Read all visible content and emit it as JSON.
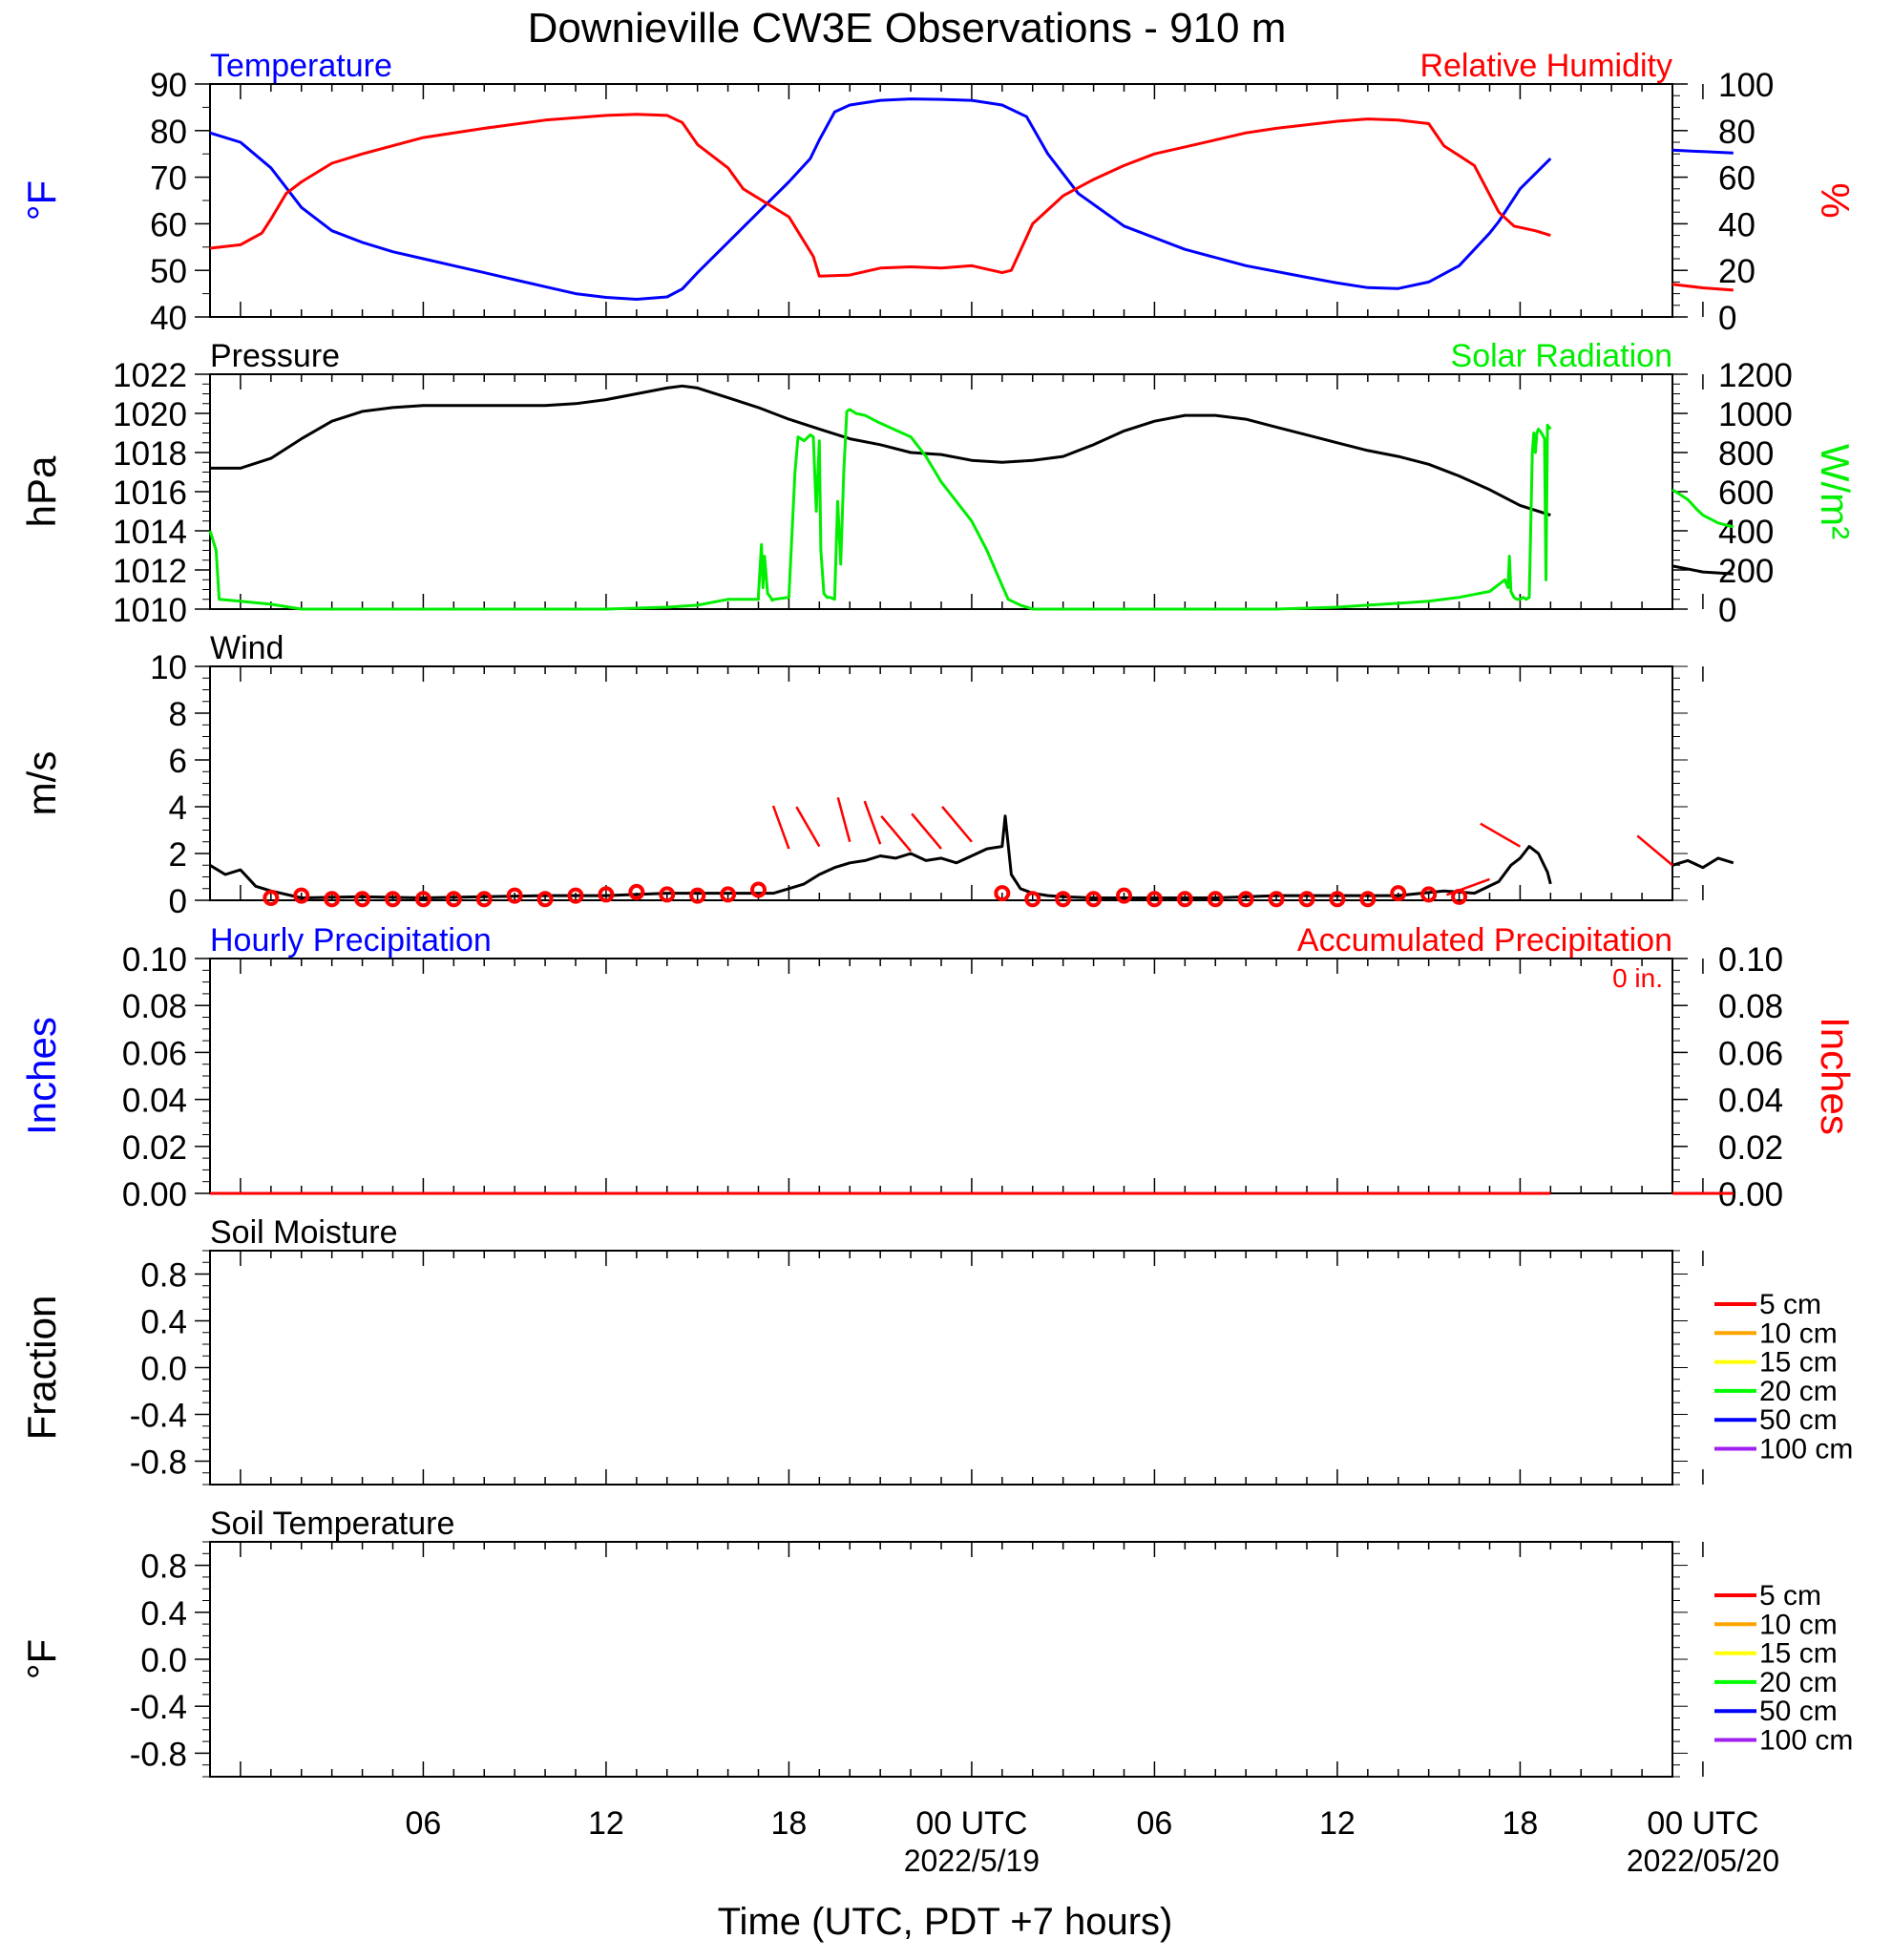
{
  "title": "Downieville CW3E Observations - 910 m",
  "xaxis": {
    "label": "Time (UTC, PDT +7 hours)",
    "range_hours": [
      -1,
      47
    ],
    "ticks": [
      {
        "h": 6,
        "label": "06",
        "sub": ""
      },
      {
        "h": 12,
        "label": "12",
        "sub": ""
      },
      {
        "h": 18,
        "label": "18",
        "sub": ""
      },
      {
        "h": 24,
        "label": "00 UTC",
        "sub": "2022/5/19"
      },
      {
        "h": 30,
        "label": "06",
        "sub": ""
      },
      {
        "h": 36,
        "label": "12",
        "sub": ""
      },
      {
        "h": 42,
        "label": "18",
        "sub": ""
      },
      {
        "h": 48,
        "label": "00 UTC",
        "sub": "2022/05/20"
      }
    ]
  },
  "colors": {
    "temperature": "#0000ff",
    "humidity": "#ff0000",
    "pressure": "#000000",
    "solar": "#00ee00",
    "wind": "#000000",
    "barb": "#ff0000",
    "hourly_precip": "#0000ff",
    "accum_precip": "#ff0000"
  },
  "legend_layers": [
    {
      "name": "5 cm",
      "color": "#ff0000"
    },
    {
      "name": "10 cm",
      "color": "#ffa500"
    },
    {
      "name": "15 cm",
      "color": "#ffff00"
    },
    {
      "name": "20 cm",
      "color": "#00ff00"
    },
    {
      "name": "50 cm",
      "color": "#0000ff"
    },
    {
      "name": "100 cm",
      "color": "#a020f0"
    }
  ],
  "panels": {
    "temp_rh": {
      "left_title": "Temperature",
      "right_title": "Relative Humidity",
      "left_unit": "°F",
      "right_unit": "%",
      "left_ticks": [
        "40",
        "50",
        "60",
        "70",
        "80",
        "90"
      ],
      "right_ticks": [
        "0",
        "20",
        "40",
        "60",
        "80",
        "100"
      ]
    },
    "pressure_solar": {
      "left_title": "Pressure",
      "right_title": "Solar Radiation",
      "left_unit": "hPa",
      "right_unit": "W/m²",
      "left_ticks": [
        "1010",
        "1012",
        "1014",
        "1016",
        "1018",
        "1020",
        "1022"
      ],
      "right_ticks": [
        "0",
        "200",
        "400",
        "600",
        "800",
        "1000",
        "1200"
      ]
    },
    "wind": {
      "left_title": "Wind",
      "left_unit": "m/s",
      "left_ticks": [
        "0",
        "2",
        "4",
        "6",
        "8",
        "10"
      ]
    },
    "precip": {
      "left_title": "Hourly Precipitation",
      "right_title": "Accumulated Precipitation",
      "total": "0 in.",
      "left_unit": "Inches",
      "right_unit": "Inches",
      "left_ticks": [
        "0.00",
        "0.02",
        "0.04",
        "0.06",
        "0.08",
        "0.10"
      ],
      "right_ticks": [
        "0.00",
        "0.02",
        "0.04",
        "0.06",
        "0.08",
        "0.10"
      ]
    },
    "soil_moisture": {
      "left_title": "Soil Moisture",
      "left_unit": "Fraction",
      "left_ticks": [
        "-0.8",
        "-0.4",
        "0.0",
        "0.4",
        "0.8"
      ]
    },
    "soil_temp": {
      "left_title": "Soil Temperature",
      "left_unit": "°F",
      "left_ticks": [
        "-0.8",
        "-0.4",
        "0.0",
        "0.4",
        "0.8"
      ]
    }
  },
  "chart_data": [
    {
      "type": "line",
      "title": "Temperature / Relative Humidity",
      "x_units": "hours since 2022-05-18 00 UTC",
      "ylim_left": [
        40,
        90
      ],
      "ylim_right": [
        0,
        100
      ],
      "series": [
        {
          "name": "Temperature",
          "axis": "left",
          "unit": "°F",
          "x": [
            -1,
            0,
            1,
            2,
            3,
            4,
            5,
            6,
            7,
            8,
            9,
            10,
            11,
            12,
            13,
            14,
            14.5,
            15,
            16,
            17,
            18,
            18.7,
            19,
            19.5,
            20,
            21,
            22,
            23,
            24,
            25,
            25.8,
            26.5,
            27.5,
            29,
            31,
            33,
            35,
            36,
            37,
            38,
            39,
            40,
            41,
            41.3,
            42,
            43
          ],
          "y": [
            79.5,
            77.5,
            72,
            63.5,
            58.5,
            56,
            54,
            52.5,
            51,
            49.5,
            48,
            46.5,
            45,
            44.2,
            43.8,
            44.3,
            46,
            49.5,
            56,
            62.5,
            69,
            74,
            78,
            84,
            85.5,
            86.5,
            86.8,
            86.7,
            86.5,
            85.5,
            83,
            75,
            66.5,
            59.5,
            54.5,
            51,
            48.5,
            47.3,
            46.3,
            46.1,
            47.5,
            51,
            58,
            60.5,
            67.5,
            74
          ]
        },
        {
          "name": "Temperature",
          "axis": "left",
          "unit": "°F",
          "x": [
            47,
            48,
            48,
            49
          ],
          "y": [
            75.8,
            75.5,
            75.5,
            75.2
          ]
        },
        {
          "name": "Relative Humidity",
          "axis": "right",
          "unit": "%",
          "x": [
            -1,
            0,
            0.7,
            1,
            1.5,
            2,
            3,
            4,
            6,
            8,
            10,
            12,
            13,
            14,
            14.5,
            15,
            16,
            16.5,
            17,
            18,
            18.8,
            19,
            20,
            21,
            22,
            23,
            24,
            25,
            25.3,
            26,
            27,
            28,
            29,
            30,
            31,
            32,
            33,
            34,
            36,
            37,
            38,
            39,
            39.5,
            40.5,
            41.3,
            41.8,
            42.5,
            43
          ],
          "y": [
            29.5,
            31,
            36,
            42,
            53,
            58,
            66,
            70,
            77,
            81,
            84.5,
            86.5,
            87,
            86.5,
            83.5,
            74,
            64,
            55,
            51,
            43,
            26,
            17.5,
            18,
            21,
            21.5,
            21,
            22,
            19,
            20,
            40,
            52,
            59,
            65,
            70,
            73,
            76,
            79,
            81,
            84,
            85,
            84.5,
            83,
            73.5,
            65,
            45,
            39,
            37,
            35
          ]
        },
        {
          "name": "Relative Humidity",
          "axis": "right",
          "unit": "%",
          "x": [
            47,
            48,
            49
          ],
          "y": [
            14,
            12.5,
            11.5
          ]
        }
      ]
    },
    {
      "type": "line",
      "title": "Pressure / Solar Radiation",
      "x_units": "hours since 2022-05-18 00 UTC",
      "ylim_left": [
        1010,
        1022
      ],
      "ylim_right": [
        0,
        1200
      ],
      "series": [
        {
          "name": "Pressure",
          "axis": "left",
          "unit": "hPa",
          "x": [
            -1,
            0,
            1,
            2,
            3,
            4,
            5,
            6,
            7,
            8,
            9,
            10,
            11,
            12,
            13,
            14,
            14.5,
            15,
            16,
            17,
            18,
            19,
            20,
            21,
            22,
            23,
            24,
            25,
            26,
            27,
            28,
            29,
            30,
            31,
            32,
            33,
            34,
            35,
            36,
            37,
            38,
            39,
            40,
            41,
            42,
            43
          ],
          "y": [
            1017.2,
            1017.2,
            1017.7,
            1018.7,
            1019.6,
            1020.1,
            1020.3,
            1020.4,
            1020.4,
            1020.4,
            1020.4,
            1020.4,
            1020.5,
            1020.7,
            1021.0,
            1021.3,
            1021.4,
            1021.3,
            1020.8,
            1020.3,
            1019.7,
            1019.2,
            1018.7,
            1018.4,
            1018.0,
            1017.9,
            1017.6,
            1017.5,
            1017.6,
            1017.8,
            1018.4,
            1019.1,
            1019.6,
            1019.9,
            1019.9,
            1019.7,
            1019.3,
            1018.9,
            1018.5,
            1018.1,
            1017.8,
            1017.4,
            1016.8,
            1016.1,
            1015.3,
            1014.8
          ]
        },
        {
          "name": "Pressure",
          "axis": "left",
          "unit": "hPa",
          "x": [
            47,
            48,
            49
          ],
          "y": [
            1012.2,
            1011.9,
            1011.8
          ]
        },
        {
          "name": "Solar Radiation",
          "axis": "right",
          "unit": "W/m²",
          "x": [
            -1,
            -0.8,
            -0.7,
            0,
            1,
            2,
            5,
            8,
            12,
            14,
            15,
            16,
            17,
            17,
            17.1,
            17.15,
            17.2,
            17.3,
            17.4,
            17.45,
            17.5,
            18,
            18.2,
            18.3,
            18.5,
            18.7,
            18.8,
            18.9,
            19,
            19.05,
            19.15,
            19.25,
            19.35,
            19.5,
            19.6,
            19.7,
            19.8,
            19.9,
            20,
            20.1,
            20.2,
            20.5,
            21,
            22,
            22.5,
            23,
            23.5,
            24,
            24.5,
            25,
            25.2,
            25.6,
            26,
            27,
            28,
            30,
            34,
            36,
            37,
            38,
            39,
            40,
            41,
            41.5,
            41.6,
            41.65,
            41.7,
            41.8,
            41.9,
            42,
            42.1,
            42.2,
            42.3,
            42.4,
            42.45,
            42.5,
            42.55,
            42.6,
            42.7,
            42.8,
            42.85,
            42.9,
            43
          ],
          "y": [
            400,
            300,
            50,
            40,
            25,
            0,
            0,
            0,
            0,
            10,
            20,
            50,
            50,
            70,
            330,
            110,
            270,
            80,
            60,
            45,
            50,
            60,
            700,
            880,
            860,
            890,
            880,
            500,
            860,
            300,
            80,
            60,
            60,
            50,
            550,
            230,
            700,
            1010,
            1020,
            1010,
            1000,
            990,
            950,
            880,
            780,
            650,
            550,
            450,
            300,
            120,
            50,
            20,
            0,
            0,
            0,
            0,
            0,
            10,
            20,
            30,
            40,
            60,
            90,
            150,
            110,
            270,
            90,
            60,
            50,
            50,
            60,
            50,
            60,
            800,
            900,
            800,
            900,
            920,
            900,
            870,
            150,
            940,
            920
          ]
        },
        {
          "name": "Solar Radiation",
          "axis": "right",
          "unit": "W/m²",
          "x": [
            47,
            47.2,
            47.5,
            47.8,
            48,
            48.5,
            49
          ],
          "y": [
            610,
            590,
            560,
            510,
            480,
            440,
            420
          ]
        }
      ]
    },
    {
      "type": "line",
      "title": "Wind",
      "x_units": "hours since 2022-05-18 00 UTC",
      "ylim": [
        0,
        10
      ],
      "series": [
        {
          "name": "Wind",
          "unit": "m/s",
          "x": [
            -1,
            -0.5,
            0,
            0.5,
            1,
            2,
            4,
            6,
            8,
            10,
            12,
            14,
            16,
            17,
            17.5,
            18,
            18.5,
            19,
            19.5,
            20,
            20.5,
            21,
            21.5,
            22,
            22.5,
            23,
            23.5,
            24,
            24.5,
            25,
            25.1,
            25.3,
            25.6,
            26,
            26.5,
            27,
            28,
            30,
            32,
            34,
            36,
            38,
            39.5,
            40.5,
            41.3,
            41.7,
            42,
            42.3,
            42.6,
            42.9,
            43
          ],
          "y": [
            1.5,
            1.1,
            1.3,
            0.6,
            0.4,
            0.1,
            0.15,
            0.1,
            0.15,
            0.2,
            0.2,
            0.3,
            0.3,
            0.3,
            0.3,
            0.5,
            0.7,
            1.1,
            1.4,
            1.6,
            1.7,
            1.9,
            1.8,
            2.0,
            1.7,
            1.8,
            1.6,
            1.9,
            2.2,
            2.3,
            3.6,
            1.1,
            0.5,
            0.3,
            0.2,
            0.15,
            0.1,
            0.1,
            0.1,
            0.2,
            0.2,
            0.2,
            0.4,
            0.3,
            0.8,
            1.5,
            1.8,
            2.3,
            2.0,
            1.2,
            0.7
          ]
        },
        {
          "name": "Wind",
          "unit": "m/s",
          "x": [
            47,
            47.5,
            48,
            48.5,
            49
          ],
          "y": [
            1.5,
            1.7,
            1.4,
            1.8,
            1.6
          ]
        }
      ],
      "barbs": {
        "unit": "m/s",
        "x": [
          1,
          2,
          3,
          4,
          5,
          6,
          7,
          8,
          9,
          10,
          11,
          12,
          13,
          14,
          15,
          16,
          17,
          18,
          19,
          20,
          21,
          22,
          23,
          24,
          25,
          26,
          27,
          28,
          29,
          30,
          31,
          32,
          33,
          34,
          35,
          36,
          37,
          38,
          39,
          40,
          41,
          42,
          47
        ],
        "y": [
          0.1,
          0.2,
          0.05,
          0.05,
          0.05,
          0.05,
          0.05,
          0.05,
          0.2,
          0.05,
          0.2,
          0.25,
          0.35,
          0.25,
          0.2,
          0.25,
          0.45,
          2.2,
          2.3,
          2.5,
          2.4,
          2.1,
          2.2,
          2.5,
          0.3,
          0.05,
          0.05,
          0.05,
          0.2,
          0.05,
          0.05,
          0.05,
          0.05,
          0.05,
          0.05,
          0.05,
          0.05,
          0.3,
          0.25,
          0.15,
          0.9,
          2.3,
          1.5
        ],
        "dir": [
          0,
          0,
          0,
          0,
          0,
          0,
          0,
          0,
          0,
          0,
          0,
          0,
          0,
          0,
          0,
          0,
          0,
          340,
          330,
          345,
          340,
          320,
          320,
          320,
          0,
          0,
          0,
          0,
          0,
          0,
          0,
          0,
          0,
          0,
          0,
          0,
          0,
          0,
          0,
          0,
          250,
          300,
          310
        ]
      }
    },
    {
      "type": "line",
      "title": "Precipitation",
      "x_units": "hours since 2022-05-18 00 UTC",
      "ylim": [
        0,
        0.1
      ],
      "series": [
        {
          "name": "Hourly Precipitation",
          "unit": "in",
          "x": [
            -1,
            43
          ],
          "y": [
            0,
            0
          ]
        },
        {
          "name": "Accumulated Precipitation",
          "unit": "in",
          "x": [
            -1,
            43
          ],
          "y": [
            0,
            0
          ]
        },
        {
          "name": "Accumulated Precipitation",
          "unit": "in",
          "x": [
            47,
            49
          ],
          "y": [
            0,
            0
          ]
        }
      ]
    },
    {
      "type": "line",
      "title": "Soil Moisture",
      "ylim": [
        -1,
        1
      ],
      "series": []
    },
    {
      "type": "line",
      "title": "Soil Temperature",
      "ylim": [
        -1,
        1
      ],
      "series": []
    }
  ]
}
